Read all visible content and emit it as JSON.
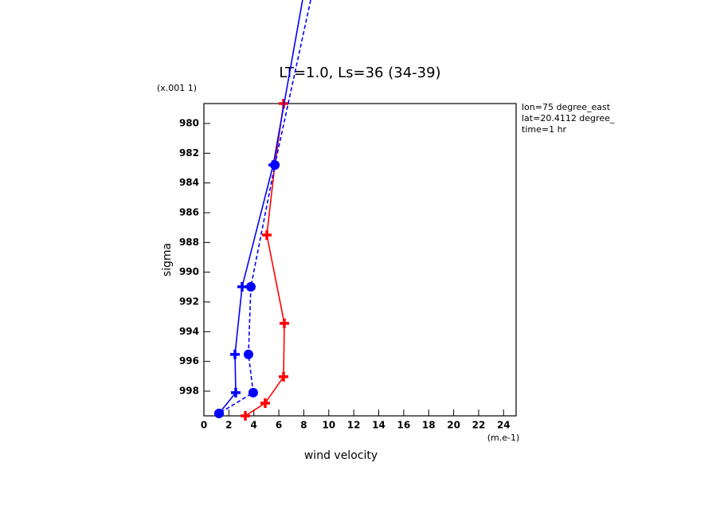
{
  "chart_data": {
    "type": "line",
    "title": "LT=1.0, Ls=36 (34-39)",
    "x_label": "wind velocity",
    "y_label": "sigma",
    "x_units": "(m.e-1)",
    "y_units": "(x.001 1)",
    "notes": [
      "lon=75 degree_east",
      "lat=20.4112 degree_",
      "time=1 hr"
    ],
    "xlim": [
      0,
      25
    ],
    "xticks": [
      0,
      2,
      4,
      6,
      8,
      10,
      12,
      14,
      16,
      18,
      20,
      22,
      24
    ],
    "ylim": [
      999.66,
      978.66
    ],
    "yticks": [
      980,
      982,
      984,
      986,
      988,
      990,
      992,
      994,
      996,
      998
    ],
    "series": [
      {
        "color": "#ff0000",
        "dash": "solid",
        "marker": "plus",
        "x": [
          6.38,
          5.68,
          5.04,
          6.44,
          6.38,
          4.91,
          3.32
        ],
        "values": [
          978.66,
          982.79,
          987.5,
          993.44,
          997.03,
          998.8,
          999.66
        ]
      },
      {
        "color": "#0000ff",
        "dash": "solid",
        "marker": "plus",
        "x": [
          7.9,
          5.55,
          3.06,
          2.49,
          2.55,
          1.21
        ],
        "values": [
          971.7,
          982.79,
          990.98,
          995.53,
          998.1,
          999.5
        ]
      },
      {
        "color": "#0000ff",
        "dash": "dashed",
        "marker": "circle",
        "x": [
          8.55,
          5.68,
          3.76,
          3.57,
          3.95,
          1.21
        ],
        "values": [
          971.7,
          982.79,
          990.98,
          995.53,
          998.1,
          999.5
        ]
      }
    ]
  }
}
